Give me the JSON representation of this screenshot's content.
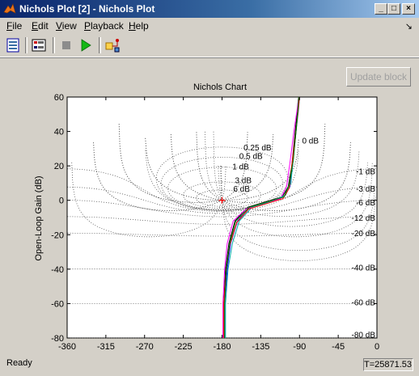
{
  "window": {
    "title": "Nichols Plot [2] - Nichols Plot",
    "minimize": "_",
    "maximize": "□",
    "close": "×"
  },
  "menu": [
    {
      "u": "F",
      "rest": "ile"
    },
    {
      "u": "E",
      "rest": "dit"
    },
    {
      "u": "V",
      "rest": "iew"
    },
    {
      "u": "P",
      "rest": "layback"
    },
    {
      "u": "H",
      "rest": "elp"
    }
  ],
  "dock_symbol": "↘",
  "update_button": "Update block",
  "status": {
    "text": "Ready",
    "time": "T=25871.53"
  },
  "chart_data": {
    "type": "line",
    "title": "Nichols Chart",
    "xlabel": "",
    "ylabel": "Open-Loop Gain (dB)",
    "xlim": [
      -360,
      -90
    ],
    "xaxis_extent": [
      -360,
      0
    ],
    "ylim": [
      -80,
      60
    ],
    "x_ticks": [
      "-360",
      "-315",
      "-270",
      "-225",
      "-180",
      "-135",
      "-90",
      "-45",
      "0"
    ],
    "y_ticks": [
      "60",
      "40",
      "20",
      "0",
      "-20",
      "-40",
      "-60",
      "-80"
    ],
    "grid": "dotted M-circle (closed-loop magnitude) contours",
    "contour_labels_left": [
      "0.25 dB",
      "0.5 dB",
      "1 dB",
      "3 dB",
      "6 dB"
    ],
    "contour_label_0db": "0 dB",
    "contour_labels_right": [
      "-1 dB",
      "-3 dB",
      "-6 dB",
      "-12 dB",
      "-20 dB",
      "-40 dB",
      "-60 dB",
      "-80 dB"
    ],
    "critical_point": {
      "x": -180,
      "y": 0,
      "marker": "+"
    },
    "series": [
      {
        "color": "#000000",
        "points": [
          [
            -178,
            -80
          ],
          [
            -178,
            -60
          ],
          [
            -176,
            -40
          ],
          [
            -172,
            -25
          ],
          [
            -165,
            -12
          ],
          [
            -150,
            -4
          ],
          [
            -130,
            -1
          ],
          [
            -110,
            2
          ],
          [
            -103,
            8
          ],
          [
            -99,
            20
          ],
          [
            -96,
            35
          ],
          [
            -93,
            50
          ],
          [
            -91,
            60
          ]
        ]
      },
      {
        "color": "#0000ff",
        "points": [
          [
            -177,
            -80
          ],
          [
            -177,
            -60
          ],
          [
            -174,
            -40
          ],
          [
            -170,
            -25
          ],
          [
            -162,
            -12
          ],
          [
            -147,
            -4
          ],
          [
            -127,
            -1
          ],
          [
            -108,
            2
          ],
          [
            -101,
            8
          ],
          [
            -98,
            20
          ],
          [
            -95,
            35
          ],
          [
            -92,
            50
          ],
          [
            -90,
            60
          ]
        ]
      },
      {
        "color": "#ff00ff",
        "points": [
          [
            -179,
            -80
          ],
          [
            -179,
            -60
          ],
          [
            -177,
            -40
          ],
          [
            -174,
            -25
          ],
          [
            -167,
            -12
          ],
          [
            -152,
            -5
          ],
          [
            -132,
            -2
          ],
          [
            -112,
            1
          ],
          [
            -105,
            8
          ],
          [
            -101,
            22
          ],
          [
            -97,
            38
          ],
          [
            -93,
            52
          ],
          [
            -91,
            60
          ]
        ]
      },
      {
        "color": "#00aaaa",
        "points": [
          [
            -176,
            -80
          ],
          [
            -176,
            -60
          ],
          [
            -173,
            -40
          ],
          [
            -168,
            -25
          ],
          [
            -160,
            -12
          ],
          [
            -145,
            -4
          ],
          [
            -125,
            -1
          ],
          [
            -106,
            3
          ],
          [
            -100,
            10
          ],
          [
            -97,
            25
          ],
          [
            -94,
            40
          ],
          [
            -91,
            53
          ],
          [
            -90,
            60
          ]
        ]
      },
      {
        "color": "#ff0000",
        "points": [
          [
            -178,
            -80
          ],
          [
            -178,
            -60
          ],
          [
            -175,
            -40
          ],
          [
            -171,
            -26
          ],
          [
            -163,
            -13
          ],
          [
            -149,
            -5
          ],
          [
            -129,
            -2
          ],
          [
            -109,
            1
          ],
          [
            -102,
            7
          ],
          [
            -99,
            20
          ],
          [
            -95,
            36
          ],
          [
            -92,
            50
          ],
          [
            -90,
            60
          ]
        ]
      },
      {
        "color": "#008000",
        "points": [
          [
            -177,
            -80
          ],
          [
            -177,
            -60
          ],
          [
            -175,
            -40
          ],
          [
            -171,
            -25
          ],
          [
            -164,
            -12
          ],
          [
            -148,
            -4
          ],
          [
            -128,
            -1
          ],
          [
            -108,
            2
          ],
          [
            -102,
            9
          ],
          [
            -97,
            24
          ],
          [
            -94,
            40
          ],
          [
            -92,
            52
          ],
          [
            -91,
            60
          ]
        ]
      }
    ]
  }
}
